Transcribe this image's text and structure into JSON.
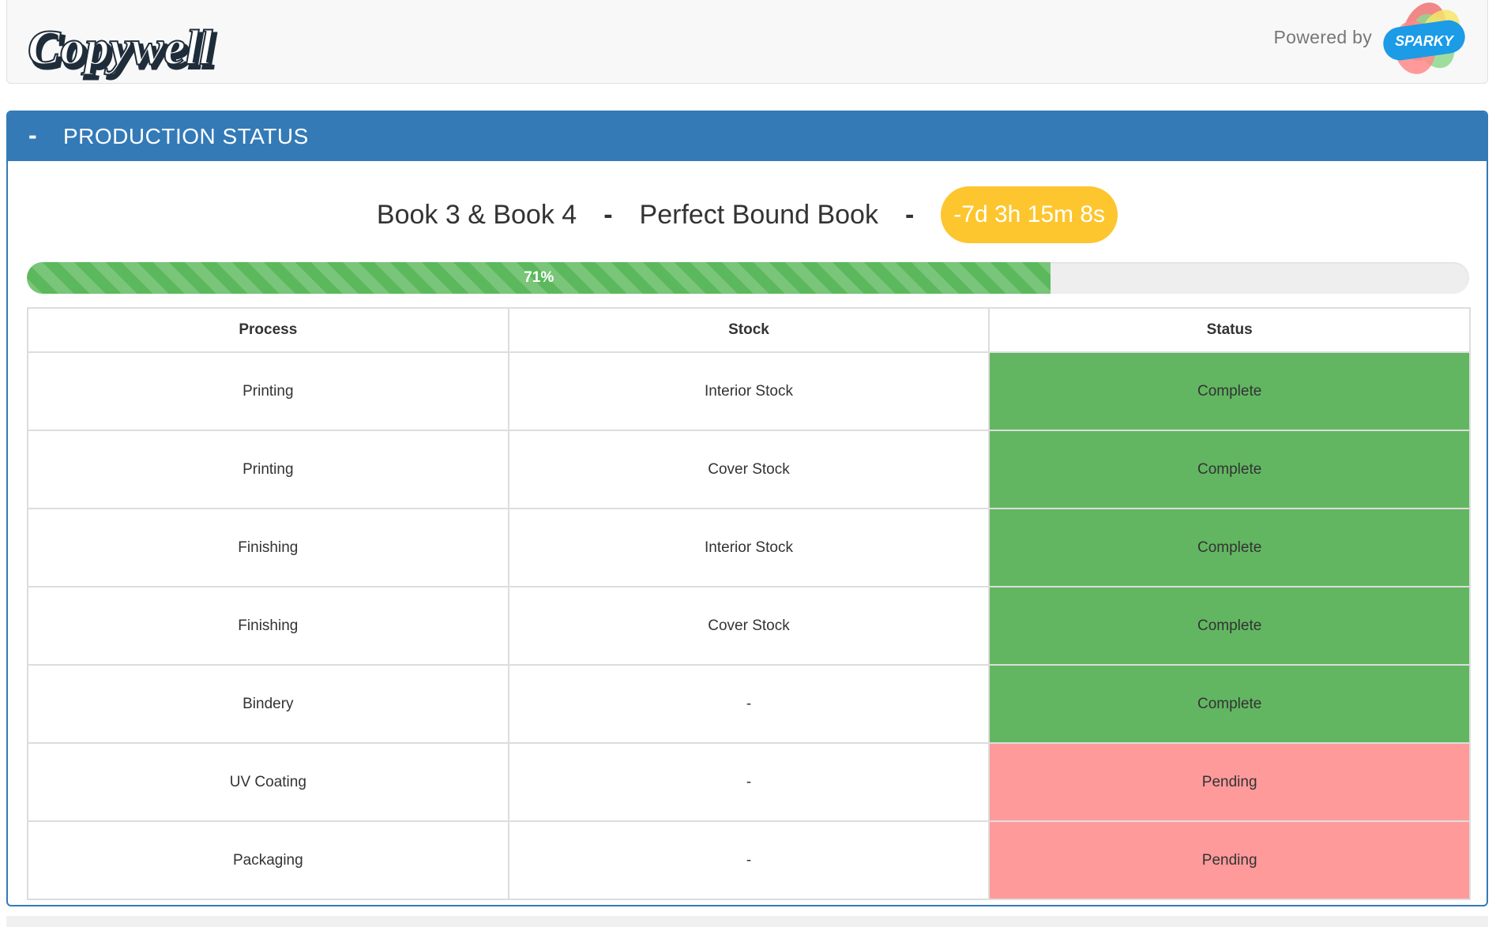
{
  "header": {
    "logo_text": "Copywell",
    "powered_by": "Powered by",
    "partner_logo_text": "SPARKY"
  },
  "panel": {
    "collapse_symbol": "-",
    "title": "PRODUCTION STATUS"
  },
  "job": {
    "name": "Book 3 & Book 4",
    "separator": "-",
    "product": "Perfect Bound Book",
    "timer": "-7d 3h 15m 8s"
  },
  "progress": {
    "value": 71,
    "label": "71%"
  },
  "table": {
    "headers": [
      "Process",
      "Stock",
      "Status"
    ],
    "rows": [
      {
        "process": "Printing",
        "stock": "Interior Stock",
        "status": "Complete"
      },
      {
        "process": "Printing",
        "stock": "Cover Stock",
        "status": "Complete"
      },
      {
        "process": "Finishing",
        "stock": "Interior Stock",
        "status": "Complete"
      },
      {
        "process": "Finishing",
        "stock": "Cover Stock",
        "status": "Complete"
      },
      {
        "process": "Bindery",
        "stock": "-",
        "status": "Complete"
      },
      {
        "process": "UV Coating",
        "stock": "-",
        "status": "Pending"
      },
      {
        "process": "Packaging",
        "stock": "-",
        "status": "Pending"
      }
    ]
  },
  "colors": {
    "primary": "#337ab7",
    "timer_badge": "#fdc62f",
    "progress": "#5cb85c",
    "complete": "#62b661",
    "pending": "#ff9a9b"
  }
}
